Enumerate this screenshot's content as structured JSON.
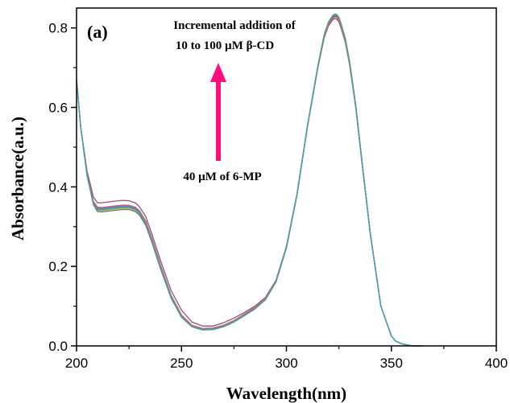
{
  "chart_data": {
    "type": "line",
    "panel_label": "(a)",
    "xlabel": "Wavelength(nm)",
    "ylabel": "Absorbance(a.u.)",
    "xlim": [
      200,
      400
    ],
    "ylim": [
      0,
      0.85
    ],
    "xticks": [
      200,
      250,
      300,
      350,
      400
    ],
    "yticks": [
      0.0,
      0.2,
      0.4,
      0.6,
      0.8
    ],
    "x_tick_labels": [
      "200",
      "250",
      "300",
      "350",
      "400"
    ],
    "y_tick_labels": [
      "0.0",
      "0.2",
      "0.4",
      "0.6",
      "0.8"
    ],
    "grid": false,
    "annotations": {
      "top_line1": "Incremental addition of",
      "top_line2": "10 to 100 µM β-CD",
      "bottom": "40 µM of 6-MP",
      "arrow_direction": "up",
      "arrow_color": "#ff0f7b"
    },
    "x": [
      200,
      202,
      205,
      208,
      210,
      212,
      215,
      218,
      220,
      222,
      225,
      228,
      230,
      233,
      236,
      240,
      245,
      250,
      255,
      260,
      265,
      270,
      275,
      280,
      285,
      290,
      295,
      300,
      305,
      310,
      315,
      318,
      320,
      322,
      323,
      324,
      325,
      326,
      328,
      330,
      333,
      336,
      340,
      345,
      350,
      352,
      355,
      358,
      360,
      363,
      365
    ],
    "series": [
      {
        "color": "#9c4f6a",
        "values": [
          0.67,
          0.55,
          0.44,
          0.375,
          0.36,
          0.36,
          0.362,
          0.364,
          0.365,
          0.366,
          0.365,
          0.36,
          0.35,
          0.325,
          0.28,
          0.215,
          0.14,
          0.09,
          0.06,
          0.05,
          0.05,
          0.058,
          0.07,
          0.084,
          0.1,
          0.122,
          0.165,
          0.25,
          0.38,
          0.55,
          0.7,
          0.775,
          0.805,
          0.82,
          0.823,
          0.822,
          0.815,
          0.8,
          0.765,
          0.71,
          0.6,
          0.46,
          0.28,
          0.1,
          0.025,
          0.012,
          0.005,
          0.002,
          0.0,
          0.0,
          0.0
        ]
      },
      {
        "color": "#4d9e4d",
        "values": [
          0.67,
          0.55,
          0.43,
          0.36,
          0.345,
          0.344,
          0.346,
          0.348,
          0.349,
          0.35,
          0.35,
          0.345,
          0.336,
          0.31,
          0.265,
          0.2,
          0.125,
          0.075,
          0.05,
          0.042,
          0.043,
          0.05,
          0.062,
          0.078,
          0.095,
          0.118,
          0.162,
          0.248,
          0.38,
          0.553,
          0.705,
          0.782,
          0.813,
          0.829,
          0.833,
          0.832,
          0.825,
          0.81,
          0.773,
          0.718,
          0.606,
          0.464,
          0.282,
          0.1,
          0.025,
          0.012,
          0.005,
          0.002,
          0.0,
          0.0,
          0.0
        ]
      },
      {
        "color": "#c9b93b",
        "values": [
          0.67,
          0.55,
          0.428,
          0.357,
          0.341,
          0.34,
          0.342,
          0.344,
          0.345,
          0.346,
          0.346,
          0.341,
          0.332,
          0.306,
          0.262,
          0.197,
          0.123,
          0.074,
          0.049,
          0.041,
          0.042,
          0.049,
          0.061,
          0.077,
          0.094,
          0.117,
          0.161,
          0.247,
          0.379,
          0.552,
          0.705,
          0.783,
          0.815,
          0.831,
          0.835,
          0.834,
          0.827,
          0.812,
          0.775,
          0.72,
          0.607,
          0.465,
          0.282,
          0.1,
          0.025,
          0.012,
          0.005,
          0.002,
          0.0,
          0.0,
          0.0
        ]
      },
      {
        "color": "#d89a3c",
        "values": [
          0.67,
          0.55,
          0.43,
          0.36,
          0.344,
          0.343,
          0.345,
          0.347,
          0.348,
          0.349,
          0.349,
          0.344,
          0.335,
          0.309,
          0.264,
          0.199,
          0.124,
          0.075,
          0.05,
          0.042,
          0.043,
          0.05,
          0.062,
          0.078,
          0.095,
          0.118,
          0.162,
          0.248,
          0.38,
          0.553,
          0.706,
          0.784,
          0.815,
          0.831,
          0.835,
          0.834,
          0.827,
          0.812,
          0.775,
          0.72,
          0.607,
          0.465,
          0.282,
          0.1,
          0.025,
          0.012,
          0.005,
          0.002,
          0.0,
          0.0,
          0.0
        ]
      },
      {
        "color": "#8a6fb8",
        "values": [
          0.67,
          0.55,
          0.432,
          0.362,
          0.347,
          0.346,
          0.348,
          0.35,
          0.351,
          0.352,
          0.352,
          0.347,
          0.338,
          0.312,
          0.267,
          0.202,
          0.127,
          0.077,
          0.051,
          0.043,
          0.044,
          0.051,
          0.063,
          0.079,
          0.096,
          0.119,
          0.163,
          0.249,
          0.381,
          0.553,
          0.704,
          0.781,
          0.812,
          0.827,
          0.831,
          0.83,
          0.823,
          0.808,
          0.771,
          0.716,
          0.605,
          0.463,
          0.281,
          0.1,
          0.025,
          0.012,
          0.005,
          0.002,
          0.0,
          0.0,
          0.0
        ]
      },
      {
        "color": "#6e6e6e",
        "values": [
          0.67,
          0.55,
          0.429,
          0.356,
          0.338,
          0.337,
          0.339,
          0.341,
          0.342,
          0.343,
          0.343,
          0.338,
          0.329,
          0.303,
          0.259,
          0.194,
          0.121,
          0.072,
          0.048,
          0.04,
          0.041,
          0.048,
          0.06,
          0.076,
          0.093,
          0.116,
          0.16,
          0.246,
          0.378,
          0.551,
          0.703,
          0.781,
          0.812,
          0.828,
          0.832,
          0.831,
          0.824,
          0.809,
          0.772,
          0.717,
          0.605,
          0.463,
          0.281,
          0.1,
          0.025,
          0.012,
          0.005,
          0.002,
          0.0,
          0.0,
          0.0
        ]
      },
      {
        "color": "#4f7fc4",
        "values": [
          0.67,
          0.55,
          0.431,
          0.361,
          0.346,
          0.345,
          0.347,
          0.349,
          0.35,
          0.351,
          0.351,
          0.346,
          0.337,
          0.311,
          0.266,
          0.201,
          0.126,
          0.076,
          0.05,
          0.042,
          0.043,
          0.05,
          0.062,
          0.078,
          0.095,
          0.118,
          0.162,
          0.248,
          0.38,
          0.552,
          0.703,
          0.78,
          0.81,
          0.825,
          0.829,
          0.828,
          0.821,
          0.806,
          0.77,
          0.715,
          0.604,
          0.462,
          0.28,
          0.1,
          0.025,
          0.012,
          0.005,
          0.002,
          0.0,
          0.0,
          0.0
        ]
      },
      {
        "color": "#d0607a",
        "values": [
          0.67,
          0.55,
          0.433,
          0.364,
          0.349,
          0.348,
          0.35,
          0.352,
          0.353,
          0.354,
          0.354,
          0.349,
          0.34,
          0.314,
          0.269,
          0.204,
          0.128,
          0.078,
          0.052,
          0.044,
          0.045,
          0.052,
          0.064,
          0.08,
          0.097,
          0.12,
          0.164,
          0.25,
          0.382,
          0.553,
          0.702,
          0.778,
          0.808,
          0.823,
          0.827,
          0.826,
          0.819,
          0.804,
          0.768,
          0.713,
          0.603,
          0.461,
          0.28,
          0.1,
          0.025,
          0.012,
          0.005,
          0.002,
          0.0,
          0.0,
          0.0
        ]
      },
      {
        "color": "#3aa7a7",
        "values": [
          0.67,
          0.55,
          0.43,
          0.359,
          0.343,
          0.342,
          0.344,
          0.346,
          0.347,
          0.348,
          0.348,
          0.343,
          0.334,
          0.308,
          0.263,
          0.198,
          0.124,
          0.074,
          0.049,
          0.041,
          0.042,
          0.049,
          0.061,
          0.077,
          0.094,
          0.117,
          0.161,
          0.247,
          0.379,
          0.552,
          0.704,
          0.782,
          0.814,
          0.83,
          0.834,
          0.833,
          0.826,
          0.811,
          0.774,
          0.719,
          0.606,
          0.464,
          0.282,
          0.1,
          0.025,
          0.012,
          0.005,
          0.002,
          0.0,
          0.0,
          0.0
        ]
      }
    ]
  }
}
